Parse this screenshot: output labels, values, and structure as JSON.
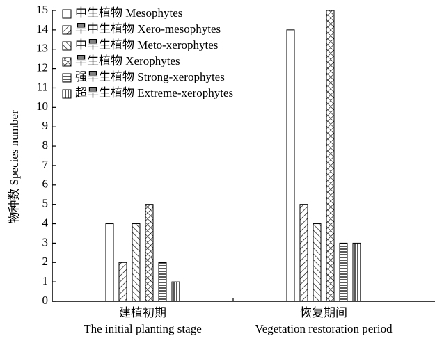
{
  "chart_data": {
    "type": "bar",
    "y_label": "物种数 Species number",
    "categories": [
      [
        "建植初期",
        "The initial planting stage"
      ],
      [
        "恢复期间",
        "Vegetation restoration period"
      ]
    ],
    "series": [
      {
        "name": "中生植物 Mesophytes",
        "hatch": "none",
        "values": [
          4,
          14
        ]
      },
      {
        "name": "旱中生植物 Xero-mesophytes",
        "hatch": "/",
        "values": [
          2,
          5
        ]
      },
      {
        "name": "中旱生植物 Meto-xerophytes",
        "hatch": "\\",
        "values": [
          4,
          4
        ]
      },
      {
        "name": "旱生植物 Xerophytes",
        "hatch": "x",
        "values": [
          5,
          15
        ]
      },
      {
        "name": "强旱生植物 Strong-xerophytes",
        "hatch": "-",
        "values": [
          2,
          3
        ]
      },
      {
        "name": "超旱生植物 Extreme-xerophytes",
        "hatch": "|",
        "values": [
          1,
          3
        ]
      }
    ],
    "color": "#000000",
    "ylim": [
      0,
      15
    ],
    "yticks": [
      0,
      1,
      2,
      3,
      4,
      5,
      6,
      7,
      8,
      9,
      10,
      11,
      12,
      13,
      14,
      15
    ],
    "legend": "upper left"
  }
}
